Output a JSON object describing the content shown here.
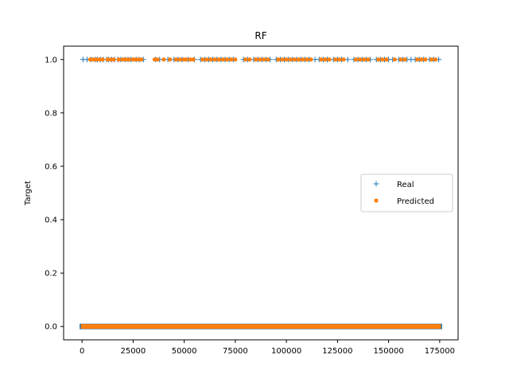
{
  "chart_data": {
    "type": "scatter",
    "title": "RF",
    "xlabel": "",
    "ylabel": "Target",
    "xlim": [
      -9000,
      184000
    ],
    "ylim": [
      -0.05,
      1.05
    ],
    "xticks": [
      0,
      25000,
      50000,
      75000,
      100000,
      125000,
      150000,
      175000
    ],
    "xtick_labels": [
      "0",
      "25000",
      "50000",
      "75000",
      "100000",
      "125000",
      "150000",
      "175000"
    ],
    "yticks": [
      0.0,
      0.2,
      0.4,
      0.6,
      0.8,
      1.0
    ],
    "ytick_labels": [
      "0.0",
      "0.2",
      "0.4",
      "0.6",
      "0.8",
      "1.0"
    ],
    "legend_position": "center-right",
    "series": [
      {
        "name": "Real",
        "marker": "plus",
        "color": "#1f77b4",
        "baseline_value": 0,
        "baseline_x_range": [
          0,
          175000
        ],
        "ones_x": [
          500,
          2500,
          4500,
          6500,
          7500,
          9000,
          10500,
          12000,
          13000,
          14500,
          16000,
          17500,
          19000,
          21000,
          22500,
          24000,
          26500,
          28000,
          30000,
          36000,
          38000,
          42000,
          45000,
          47000,
          49000,
          52000,
          55000,
          58000,
          60000,
          62000,
          64000,
          66000,
          68000,
          70000,
          72000,
          74000,
          79000,
          81000,
          84000,
          86000,
          88000,
          90000,
          92000,
          95000,
          97000,
          99000,
          101000,
          103000,
          105000,
          107000,
          109000,
          111000,
          114000,
          116000,
          118000,
          120000,
          123000,
          125000,
          127000,
          130000,
          133000,
          135000,
          137000,
          139000,
          141000,
          144000,
          146000,
          148000,
          150000,
          152000,
          155000,
          157000,
          159000,
          161000,
          163000,
          165000,
          167000,
          170000,
          172000,
          174500
        ]
      },
      {
        "name": "Predicted",
        "marker": "dot",
        "color": "#ff7f0e",
        "baseline_value": 0,
        "baseline_x_range": [
          0,
          175000
        ],
        "ones_x": [
          4000,
          5500,
          7000,
          8500,
          10000,
          12500,
          14000,
          15500,
          18000,
          20000,
          21500,
          23000,
          25000,
          26000,
          27500,
          29000,
          35500,
          37000,
          40000,
          43000,
          46000,
          48000,
          50000,
          51000,
          53000,
          54500,
          59000,
          61000,
          63000,
          65000,
          67000,
          69000,
          71000,
          73000,
          75000,
          80000,
          82000,
          85000,
          87000,
          89000,
          91000,
          96000,
          98000,
          100000,
          102000,
          104000,
          106000,
          108000,
          110000,
          112000,
          117000,
          119000,
          121000,
          124000,
          126000,
          128000,
          134000,
          136000,
          138000,
          140000,
          145000,
          147000,
          149000,
          153000,
          156000,
          158000,
          164000,
          166000,
          168000,
          171000,
          173000
        ]
      }
    ]
  }
}
